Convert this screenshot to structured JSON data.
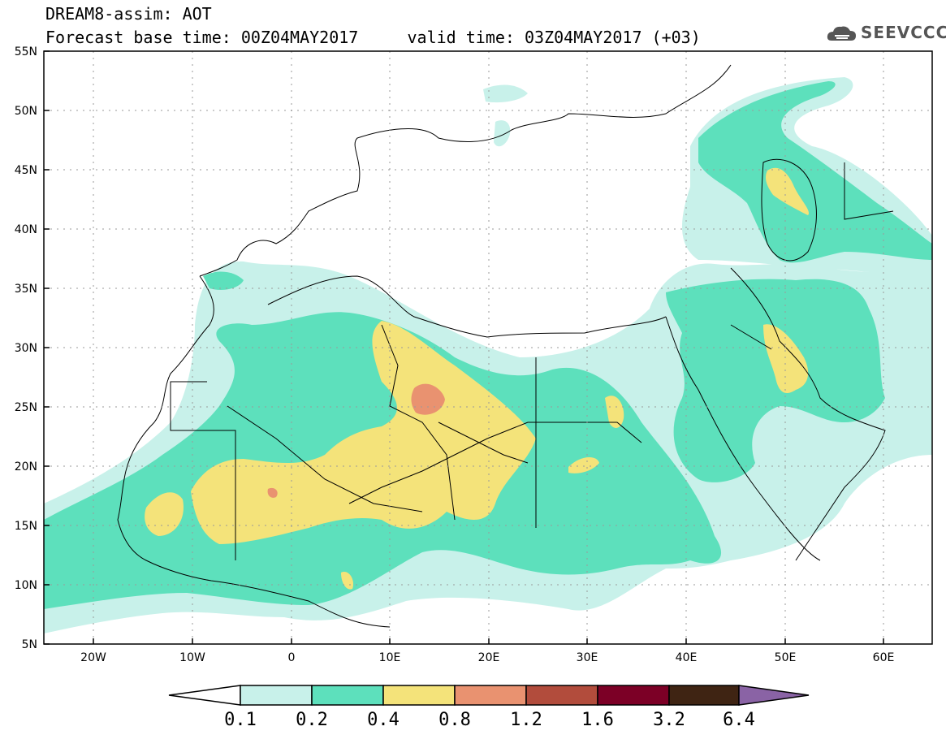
{
  "title": {
    "line1": "DREAM8-assim: AOT",
    "line2": "Forecast base time: 00Z04MAY2017     valid time: 03Z04MAY2017 (+03)"
  },
  "logo": {
    "text": "SEEVCCC",
    "icon": "cloud-icon"
  },
  "axes": {
    "lat_labels": [
      "55N",
      "50N",
      "45N",
      "40N",
      "35N",
      "30N",
      "25N",
      "20N",
      "15N",
      "10N",
      "5N"
    ],
    "lon_labels": [
      "20W",
      "10W",
      "0",
      "10E",
      "20E",
      "30E",
      "40E",
      "50E",
      "60E"
    ]
  },
  "colorbar": {
    "labels": [
      "0.1",
      "0.2",
      "0.4",
      "0.8",
      "1.2",
      "1.6",
      "3.2",
      "6.4"
    ],
    "colors": [
      "#ffffff",
      "#c8f1ea",
      "#5de0bc",
      "#f4e37a",
      "#e99270",
      "#b24c3c",
      "#7c0026",
      "#3f2413",
      "#8a63a5"
    ]
  },
  "palette": {
    "low": "#c8f1ea",
    "mid": "#5de0bc",
    "high": "#f4e37a",
    "higher": "#e99270"
  }
}
